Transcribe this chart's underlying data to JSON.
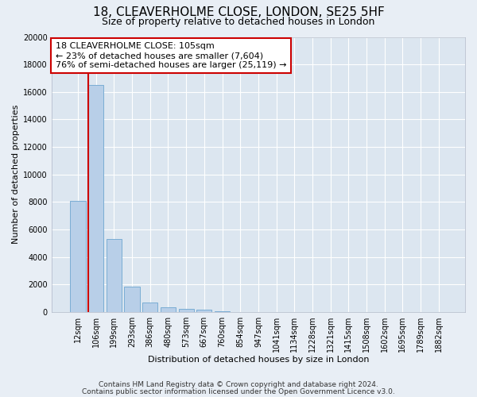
{
  "title": "18, CLEAVERHOLME CLOSE, LONDON, SE25 5HF",
  "subtitle": "Size of property relative to detached houses in London",
  "xlabel": "Distribution of detached houses by size in London",
  "ylabel": "Number of detached properties",
  "footnote1": "Contains HM Land Registry data © Crown copyright and database right 2024.",
  "footnote2": "Contains public sector information licensed under the Open Government Licence v3.0.",
  "categories": [
    "12sqm",
    "106sqm",
    "199sqm",
    "293sqm",
    "386sqm",
    "480sqm",
    "573sqm",
    "667sqm",
    "760sqm",
    "854sqm",
    "947sqm",
    "1041sqm",
    "1134sqm",
    "1228sqm",
    "1321sqm",
    "1415sqm",
    "1508sqm",
    "1602sqm",
    "1695sqm",
    "1789sqm",
    "1882sqm"
  ],
  "values": [
    8100,
    16500,
    5300,
    1850,
    700,
    350,
    220,
    150,
    80,
    0,
    0,
    0,
    0,
    0,
    0,
    0,
    0,
    0,
    0,
    0,
    0
  ],
  "bar_color": "#b8cfe8",
  "bar_edge_color": "#7aadd4",
  "highlight_line_color": "#cc0000",
  "annotation_text": "18 CLEAVERHOLME CLOSE: 105sqm\n← 23% of detached houses are smaller (7,604)\n76% of semi-detached houses are larger (25,119) →",
  "annotation_box_facecolor": "#ffffff",
  "annotation_box_edgecolor": "#cc0000",
  "ylim": [
    0,
    20000
  ],
  "yticks": [
    0,
    2000,
    4000,
    6000,
    8000,
    10000,
    12000,
    14000,
    16000,
    18000,
    20000
  ],
  "bg_color": "#e8eef5",
  "plot_bg_color": "#dce6f0",
  "grid_color": "#ffffff",
  "title_fontsize": 11,
  "subtitle_fontsize": 9,
  "axis_label_fontsize": 8,
  "tick_fontsize": 7,
  "annotation_fontsize": 8,
  "footnote_fontsize": 6.5
}
